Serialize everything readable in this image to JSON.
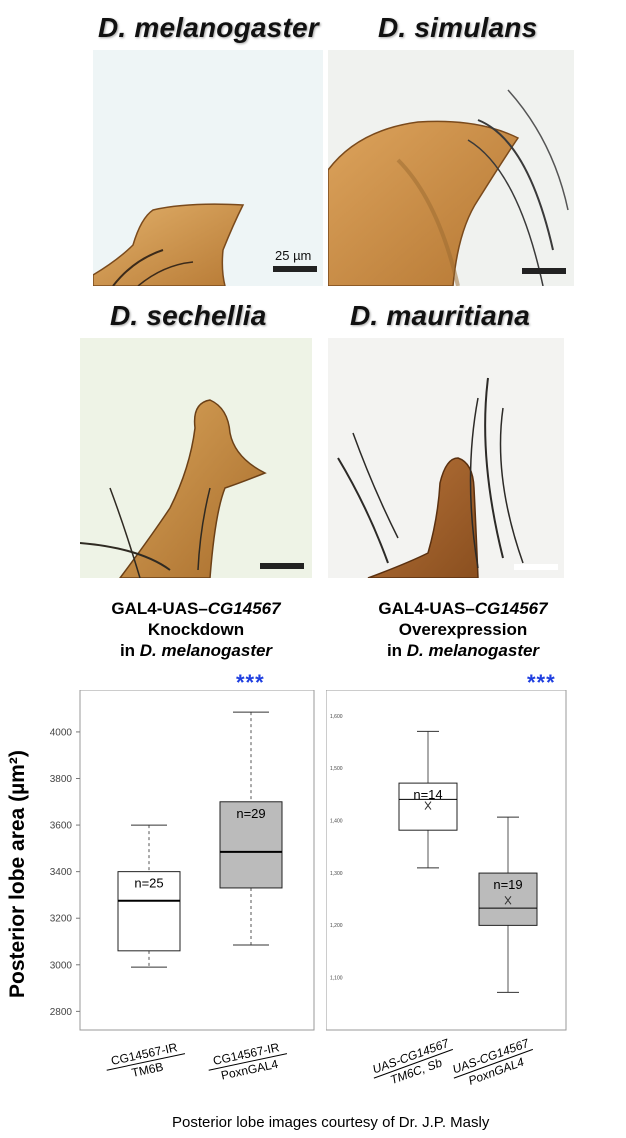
{
  "species": {
    "top_left": "D. melanogaster",
    "top_right": "D. simulans",
    "mid_left": "D. sechellia",
    "mid_right": "D. mauritiana"
  },
  "scale_bar_label": "25 µm",
  "conditions": {
    "left": {
      "line1": "GAL4-UAS–",
      "gene": "CG14567",
      "line2": "Knockdown",
      "line3_prefix": "in ",
      "line3_species": "D. melanogaster"
    },
    "right": {
      "line1": "GAL4-UAS–",
      "gene": "CG14567",
      "line2": "Overexpression",
      "line3_prefix": "in ",
      "line3_species": "D. melanogaster"
    }
  },
  "significance": {
    "left": "***",
    "right": "***",
    "color": "#1f3fe0"
  },
  "y_axis_label": "Posterior lobe area (µm²)",
  "credit": "Posterior lobe images courtesy of Dr. J.P. Masly",
  "chart_data": [
    {
      "type": "box",
      "ylabel": "Posterior lobe area (µm²)",
      "ylim": [
        2720,
        4180
      ],
      "yticks": [
        2800,
        3000,
        3200,
        3400,
        3600,
        3800,
        4000
      ],
      "groups": [
        {
          "label_top": "CG14567-IR",
          "label_bottom": "TM6B",
          "min": 2990,
          "q1": 3060,
          "median": 3275,
          "q3": 3400,
          "max": 3600,
          "n_label": "n=25",
          "fill": "#ffffff"
        },
        {
          "label_top": "CG14567-IR",
          "label_bottom": "PoxnGAL4",
          "min": 3085,
          "q1": 3330,
          "median": 3485,
          "q3": 3700,
          "max": 4085,
          "n_label": "n=29",
          "fill": "#bbbbbb"
        }
      ]
    },
    {
      "type": "box",
      "yticks": [
        "1,100",
        "1,200",
        "1,300",
        "1,400",
        "1,500",
        "1,600"
      ],
      "ylim": [
        1000,
        1650
      ],
      "groups": [
        {
          "label_top": "UAS-CG14567",
          "label_bottom": "TM6C, Sb",
          "min": 1310,
          "q1": 1382,
          "median": 1441,
          "q3": 1472,
          "max": 1571,
          "mean": 1429,
          "n_label": "n=14",
          "fill": "#ffffff"
        },
        {
          "label_top": "UAS-CG14567",
          "label_bottom": "PoxnGAL4",
          "min": 1072,
          "q1": 1200,
          "median": 1233,
          "q3": 1300,
          "max": 1407,
          "mean": 1248,
          "n_label": "n=19",
          "fill": "#bbbbbb"
        }
      ]
    }
  ]
}
